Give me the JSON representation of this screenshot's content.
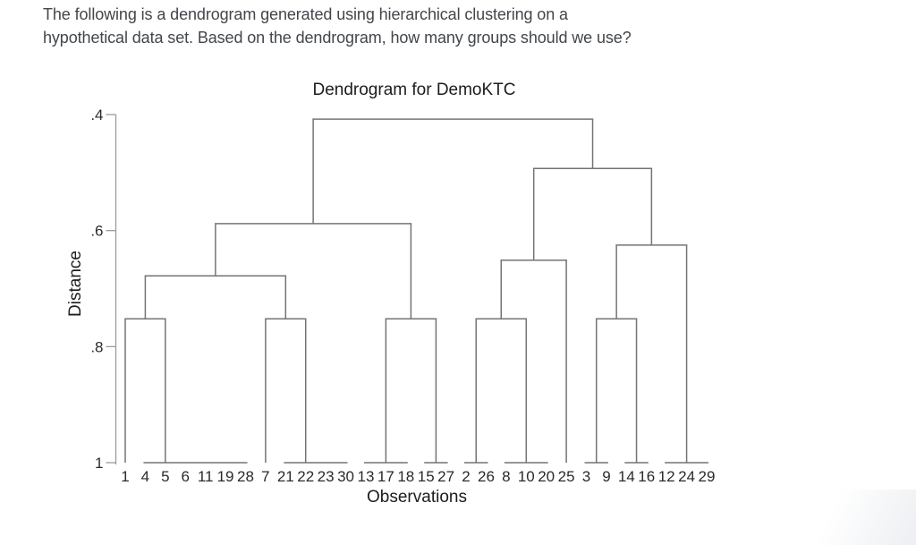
{
  "question": {
    "line1": "The following is a dendrogram generated using hierarchical clustering on a",
    "line2": "hypothetical data set. Based on the dendrogram, how many groups should we use?"
  },
  "chart_data": {
    "type": "dendrogram",
    "title": "Dendrogram for DemoKTC",
    "xlabel": "Observations",
    "ylabel": "Distance",
    "y_axis": {
      "tick_labels": [
        ".4",
        ".6",
        ".8",
        "1"
      ],
      "tick_values": [
        0.4,
        0.6,
        0.8,
        1.0
      ],
      "min": 0.4,
      "max": 1.0,
      "inverted": true,
      "note": "distance increases downward; leaves at bottom join at distance 1"
    },
    "leaf_order": [
      "1",
      "4",
      "5",
      "6",
      "11",
      "19",
      "28",
      "7",
      "21",
      "22",
      "23",
      "30",
      "13",
      "17",
      "18",
      "15",
      "27",
      "2",
      "26",
      "8",
      "10",
      "20",
      "25",
      "3",
      "9",
      "14",
      "16",
      "12",
      "24",
      "29"
    ],
    "tree": {
      "height": 0.408,
      "children": [
        {
          "height": 0.588,
          "children": [
            {
              "height": 0.678,
              "children": [
                {
                  "height": 0.752,
                  "children": [
                    {
                      "leaf": "1"
                    },
                    {
                      "group": [
                        "4",
                        "5",
                        "6",
                        "11",
                        "19",
                        "28"
                      ],
                      "anchor": "5"
                    }
                  ]
                },
                {
                  "height": 0.752,
                  "children": [
                    {
                      "leaf": "7"
                    },
                    {
                      "group": [
                        "21",
                        "22",
                        "23",
                        "30"
                      ],
                      "anchor": "22"
                    }
                  ]
                }
              ]
            },
            {
              "height": 0.752,
              "children": [
                {
                  "group": [
                    "13",
                    "17",
                    "18"
                  ],
                  "anchor": "17"
                },
                {
                  "group": [
                    "15",
                    "27"
                  ]
                }
              ]
            }
          ]
        },
        {
          "height": 0.493,
          "children": [
            {
              "height": 0.651,
              "children": [
                {
                  "height": 0.752,
                  "children": [
                    {
                      "group": [
                        "2",
                        "26"
                      ]
                    },
                    {
                      "group": [
                        "8",
                        "10",
                        "20"
                      ],
                      "anchor": "10"
                    }
                  ]
                },
                {
                  "leaf": "25"
                }
              ]
            },
            {
              "height": 0.625,
              "children": [
                {
                  "height": 0.752,
                  "children": [
                    {
                      "group": [
                        "3",
                        "9"
                      ]
                    },
                    {
                      "group": [
                        "14",
                        "16"
                      ]
                    }
                  ]
                },
                {
                  "group": [
                    "12",
                    "24",
                    "29"
                  ],
                  "anchor": "24"
                }
              ]
            }
          ]
        }
      ]
    },
    "colors": {
      "tree_line": "#747474",
      "axis_line": "#9a9a9a",
      "label_text": "#1c1c1e",
      "tick_text": "#2a2a2a",
      "question_text": "#42464b"
    }
  }
}
